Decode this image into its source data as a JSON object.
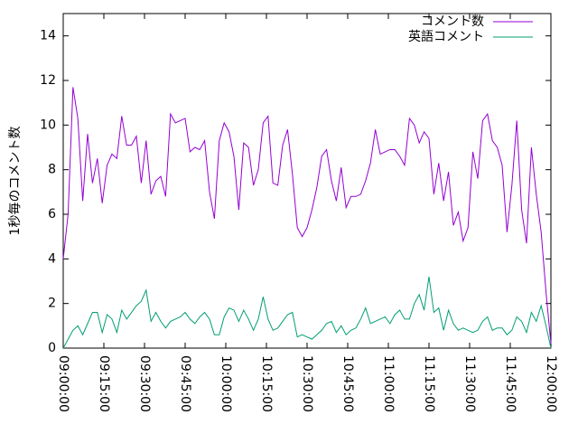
{
  "chart_data": {
    "type": "line",
    "y_label": "1秒毎のコメント数",
    "x": [
      "09:00:00",
      "09:01:48",
      "09:03:36",
      "09:05:24",
      "09:07:12",
      "09:09:00",
      "09:10:48",
      "09:12:36",
      "09:14:24",
      "09:16:12",
      "09:18:00",
      "09:19:48",
      "09:21:36",
      "09:23:24",
      "09:25:12",
      "09:27:00",
      "09:28:48",
      "09:30:36",
      "09:32:24",
      "09:34:12",
      "09:36:00",
      "09:37:48",
      "09:39:36",
      "09:41:24",
      "09:43:12",
      "09:45:00",
      "09:46:48",
      "09:48:36",
      "09:50:24",
      "09:52:12",
      "09:54:00",
      "09:55:48",
      "09:57:36",
      "09:59:24",
      "10:01:12",
      "10:03:00",
      "10:04:48",
      "10:06:36",
      "10:08:24",
      "10:10:12",
      "10:12:00",
      "10:13:48",
      "10:15:36",
      "10:17:24",
      "10:19:12",
      "10:21:00",
      "10:22:48",
      "10:24:36",
      "10:26:24",
      "10:28:12",
      "10:30:00",
      "10:31:48",
      "10:33:36",
      "10:35:24",
      "10:37:12",
      "10:39:00",
      "10:40:48",
      "10:42:36",
      "10:44:24",
      "10:46:12",
      "10:48:00",
      "10:49:48",
      "10:51:36",
      "10:53:24",
      "10:55:12",
      "10:57:00",
      "10:58:48",
      "11:00:36",
      "11:02:24",
      "11:04:12",
      "11:06:00",
      "11:07:48",
      "11:09:36",
      "11:11:24",
      "11:13:12",
      "11:15:00",
      "11:16:48",
      "11:18:36",
      "11:20:24",
      "11:22:12",
      "11:24:00",
      "11:25:48",
      "11:27:36",
      "11:29:24",
      "11:31:12",
      "11:33:00",
      "11:34:48",
      "11:36:36",
      "11:38:24",
      "11:40:12",
      "11:42:00",
      "11:43:48",
      "11:45:36",
      "11:47:24",
      "11:49:12",
      "11:51:00",
      "11:52:48",
      "11:54:36",
      "11:56:24",
      "11:58:12",
      "12:00:00"
    ],
    "series": [
      {
        "name": "コメント数",
        "color": "#9400d3",
        "values": [
          4,
          6,
          11.7,
          10.3,
          6.6,
          9.6,
          7.4,
          8.5,
          6.5,
          8.2,
          8.7,
          8.5,
          10.4,
          9.1,
          9.1,
          9.5,
          7.4,
          9.3,
          6.9,
          7.5,
          7.7,
          6.8,
          10.5,
          10.1,
          10.2,
          10.3,
          8.8,
          9.0,
          8.9,
          9.3,
          7.0,
          5.8,
          9.3,
          10.1,
          9.7,
          8.6,
          6.2,
          9.2,
          9.0,
          7.3,
          8.0,
          10.1,
          10.4,
          7.4,
          7.3,
          9.1,
          9.8,
          7.8,
          5.4,
          5.0,
          5.4,
          6.2,
          7.2,
          8.6,
          8.9,
          7.5,
          6.6,
          8.1,
          6.3,
          6.8,
          6.8,
          6.9,
          7.5,
          8.3,
          9.8,
          8.7,
          8.8,
          8.9,
          8.9,
          8.6,
          8.2,
          10.3,
          10.0,
          9.2,
          9.7,
          9.4,
          6.9,
          8.3,
          6.6,
          7.9,
          5.5,
          6.1,
          4.8,
          5.4,
          8.8,
          7.6,
          10.2,
          10.5,
          9.3,
          9.0,
          8.2,
          5.2,
          7.3,
          10.2,
          6.2,
          4.7,
          9.0,
          6.9,
          5.2,
          2.5,
          0.2
        ]
      },
      {
        "name": "英語コメント",
        "color": "#009e73",
        "values": [
          0,
          0.4,
          0.8,
          1.0,
          0.6,
          1.1,
          1.6,
          1.6,
          0.7,
          1.5,
          1.3,
          0.7,
          1.7,
          1.3,
          1.6,
          1.9,
          2.1,
          2.6,
          1.2,
          1.6,
          1.2,
          0.9,
          1.2,
          1.3,
          1.4,
          1.6,
          1.3,
          1.1,
          1.4,
          1.6,
          1.3,
          0.6,
          0.6,
          1.4,
          1.8,
          1.7,
          1.2,
          1.7,
          1.3,
          0.8,
          1.3,
          2.3,
          1.3,
          0.8,
          0.9,
          1.2,
          1.5,
          1.6,
          0.5,
          0.6,
          0.5,
          0.4,
          0.6,
          0.8,
          1.1,
          1.2,
          0.7,
          1.0,
          0.6,
          0.8,
          0.9,
          1.3,
          1.8,
          1.1,
          1.2,
          1.3,
          1.4,
          1.1,
          1.5,
          1.7,
          1.3,
          1.3,
          2.0,
          2.4,
          1.7,
          3.2,
          1.6,
          1.8,
          0.8,
          1.7,
          1.1,
          0.8,
          0.9,
          0.8,
          0.7,
          0.8,
          1.2,
          1.4,
          0.8,
          0.9,
          0.9,
          0.6,
          0.8,
          1.4,
          1.2,
          0.7,
          1.6,
          1.2,
          1.9,
          1.0,
          0
        ]
      }
    ],
    "xlim": [
      "09:00:00",
      "12:00:00"
    ],
    "xticks": [
      "09:00:00",
      "09:15:00",
      "09:30:00",
      "09:45:00",
      "10:00:00",
      "10:15:00",
      "10:30:00",
      "10:45:00",
      "11:00:00",
      "11:15:00",
      "11:30:00",
      "11:45:00",
      "12:00:00"
    ],
    "ylim": [
      0,
      15
    ],
    "yticks": [
      0,
      2,
      4,
      6,
      8,
      10,
      12,
      14
    ],
    "legend": "top-right"
  }
}
